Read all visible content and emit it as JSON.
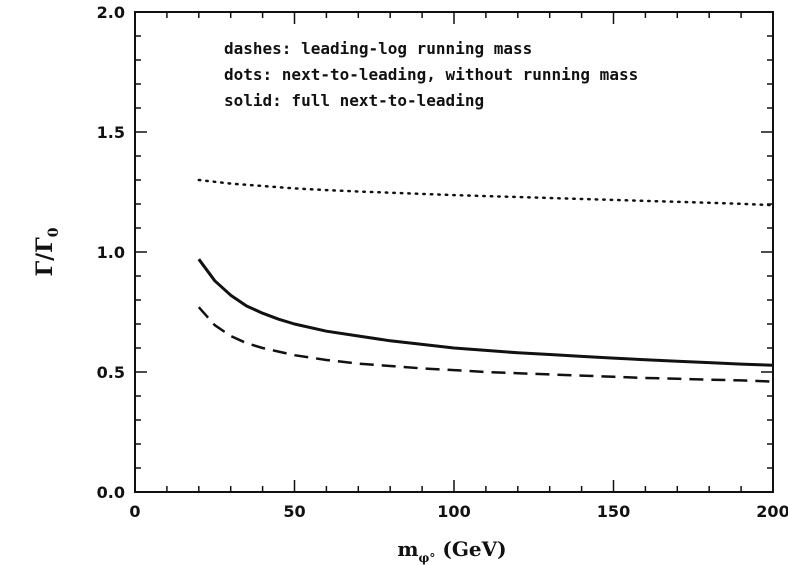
{
  "chart_data": {
    "type": "line",
    "xlabel": "m_{φ°} (GeV)",
    "xlabel_main": "m",
    "xlabel_sub": "φ°",
    "xlabel_unit": " (GeV)",
    "ylabel": "Γ/Γ_0",
    "ylabel_main": "Γ/Γ",
    "ylabel_sub": "0",
    "xlim": [
      0,
      200
    ],
    "ylim": [
      0.0,
      2.0
    ],
    "xticks": [
      0,
      50,
      100,
      150,
      200
    ],
    "xtick_labels": [
      "0",
      "50",
      "100",
      "150",
      "200"
    ],
    "yticks": [
      0.0,
      0.5,
      1.0,
      1.5,
      2.0
    ],
    "ytick_labels": [
      "0.0",
      "0.5",
      "1.0",
      "1.5",
      "2.0"
    ],
    "legend": [
      "dashes: leading-log running mass",
      "dots: next-to-leading, without running mass",
      "solid: full next-to-leading"
    ],
    "legend_placement": "top-left inside",
    "grid": false,
    "series": [
      {
        "style": "dotted",
        "x": [
          20,
          30,
          40,
          50,
          60,
          70,
          80,
          90,
          100,
          110,
          120,
          130,
          140,
          150,
          160,
          170,
          180,
          190,
          200
        ],
        "y": [
          1.3,
          1.285,
          1.275,
          1.265,
          1.258,
          1.252,
          1.247,
          1.242,
          1.237,
          1.233,
          1.229,
          1.225,
          1.221,
          1.217,
          1.213,
          1.209,
          1.205,
          1.201,
          1.195
        ]
      },
      {
        "style": "solid",
        "x": [
          20,
          25,
          30,
          35,
          40,
          45,
          50,
          60,
          70,
          80,
          90,
          100,
          110,
          120,
          130,
          140,
          150,
          160,
          170,
          180,
          190,
          200
        ],
        "y": [
          0.97,
          0.88,
          0.82,
          0.775,
          0.745,
          0.72,
          0.7,
          0.67,
          0.65,
          0.63,
          0.615,
          0.6,
          0.59,
          0.58,
          0.573,
          0.565,
          0.558,
          0.551,
          0.545,
          0.539,
          0.533,
          0.528
        ]
      },
      {
        "style": "dashed",
        "x": [
          20,
          25,
          30,
          35,
          40,
          45,
          50,
          60,
          70,
          80,
          90,
          100,
          110,
          120,
          130,
          140,
          150,
          160,
          170,
          180,
          190,
          200
        ],
        "y": [
          0.77,
          0.695,
          0.65,
          0.62,
          0.6,
          0.585,
          0.57,
          0.55,
          0.535,
          0.525,
          0.515,
          0.508,
          0.5,
          0.495,
          0.49,
          0.485,
          0.48,
          0.475,
          0.472,
          0.468,
          0.465,
          0.46
        ]
      }
    ]
  }
}
